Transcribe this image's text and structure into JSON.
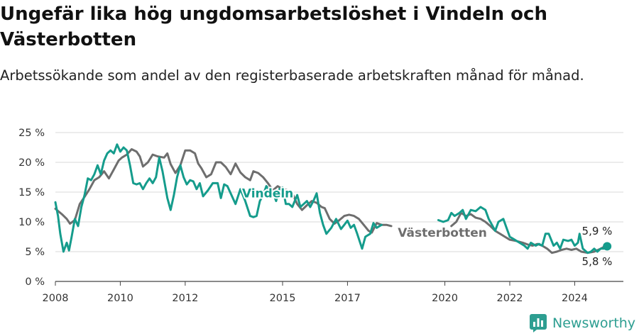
{
  "header": {
    "title": "Ungefär lika hög ungdomsarbetslöshet i Vindeln och Västerbotten",
    "subtitle": "Arbetssökande som andel av den registerbaserade arbetskraften månad för månad."
  },
  "brand": {
    "name": "Newsworthy",
    "icon": "newsworthy-logo-icon",
    "color": "#2d9e91"
  },
  "chart_data": {
    "type": "line",
    "ylim": [
      0,
      25
    ],
    "y_ticks": [
      0,
      5,
      10,
      15,
      20,
      25
    ],
    "y_tick_labels": [
      "0 %",
      "5 %",
      "10 %",
      "15 %",
      "20 %",
      "25 %"
    ],
    "x_range": [
      2008,
      2025.5
    ],
    "x_ticks": [
      2008,
      2010,
      2012,
      2015,
      2017,
      2020,
      2022,
      2024
    ],
    "x_tick_labels": [
      "2008",
      "2010",
      "2012",
      "2015",
      "2017",
      "2020",
      "2022",
      "2024"
    ],
    "grid": true,
    "series": [
      {
        "name": "Västerbotten",
        "color": "#6e6e6e",
        "end_label": "5,8 %",
        "points": [
          [
            2008.0,
            12.2
          ],
          [
            2008.2,
            11.3
          ],
          [
            2008.35,
            10.5
          ],
          [
            2008.45,
            9.7
          ],
          [
            2008.6,
            10.3
          ],
          [
            2008.75,
            13.0
          ],
          [
            2008.9,
            14.2
          ],
          [
            2009.05,
            15.5
          ],
          [
            2009.2,
            17.0
          ],
          [
            2009.35,
            17.5
          ],
          [
            2009.5,
            18.5
          ],
          [
            2009.65,
            17.3
          ],
          [
            2009.8,
            18.8
          ],
          [
            2009.95,
            20.3
          ],
          [
            2010.05,
            20.8
          ],
          [
            2010.2,
            21.3
          ],
          [
            2010.35,
            22.2
          ],
          [
            2010.5,
            21.8
          ],
          [
            2010.6,
            21.0
          ],
          [
            2010.7,
            19.3
          ],
          [
            2010.85,
            20.0
          ],
          [
            2011.0,
            21.3
          ],
          [
            2011.15,
            21.0
          ],
          [
            2011.35,
            20.8
          ],
          [
            2011.45,
            21.5
          ],
          [
            2011.55,
            19.7
          ],
          [
            2011.7,
            18.2
          ],
          [
            2011.85,
            19.5
          ],
          [
            2012.0,
            22.0
          ],
          [
            2012.15,
            22.0
          ],
          [
            2012.3,
            21.5
          ],
          [
            2012.4,
            19.8
          ],
          [
            2012.5,
            19.0
          ],
          [
            2012.65,
            17.5
          ],
          [
            2012.8,
            18.0
          ],
          [
            2012.95,
            20.0
          ],
          [
            2013.1,
            20.0
          ],
          [
            2013.25,
            19.2
          ],
          [
            2013.4,
            18.0
          ],
          [
            2013.55,
            19.8
          ],
          [
            2013.7,
            18.3
          ],
          [
            2013.85,
            17.5
          ],
          [
            2014.0,
            17.0
          ],
          [
            2014.1,
            18.5
          ],
          [
            2014.25,
            18.2
          ],
          [
            2014.4,
            17.5
          ],
          [
            2014.55,
            16.5
          ],
          [
            2014.7,
            15.3
          ],
          [
            2014.85,
            16.0
          ],
          [
            2015.0,
            15.5
          ],
          [
            2015.15,
            15.3
          ],
          [
            2015.3,
            14.8
          ],
          [
            2015.45,
            13.0
          ],
          [
            2015.6,
            12.0
          ],
          [
            2015.75,
            12.8
          ],
          [
            2015.9,
            13.5
          ],
          [
            2016.05,
            13.2
          ],
          [
            2016.2,
            12.5
          ],
          [
            2016.3,
            12.3
          ],
          [
            2016.45,
            10.5
          ],
          [
            2016.6,
            9.7
          ],
          [
            2016.75,
            10.3
          ],
          [
            2016.9,
            11.0
          ],
          [
            2017.05,
            11.2
          ],
          [
            2017.2,
            11.0
          ],
          [
            2017.35,
            10.5
          ],
          [
            2017.5,
            9.5
          ],
          [
            2017.65,
            8.5
          ],
          [
            2017.75,
            8.2
          ],
          [
            2017.9,
            9.8
          ],
          [
            2018.05,
            9.5
          ],
          [
            2018.2,
            9.5
          ],
          [
            2018.35,
            9.3
          ],
          null,
          [
            2020.2,
            9.3
          ],
          [
            2020.35,
            10.0
          ],
          [
            2020.5,
            11.5
          ],
          [
            2020.65,
            11.0
          ],
          [
            2020.8,
            11.3
          ],
          [
            2020.95,
            10.7
          ],
          [
            2021.1,
            10.5
          ],
          [
            2021.25,
            10.0
          ],
          [
            2021.4,
            9.3
          ],
          [
            2021.55,
            8.5
          ],
          [
            2021.7,
            8.0
          ],
          [
            2021.85,
            7.5
          ],
          [
            2022.0,
            7.0
          ],
          [
            2022.2,
            6.8
          ],
          [
            2022.4,
            6.5
          ],
          [
            2022.55,
            6.2
          ],
          [
            2022.7,
            6.0
          ],
          [
            2022.85,
            6.3
          ],
          [
            2023.0,
            6.0
          ],
          [
            2023.15,
            5.5
          ],
          [
            2023.3,
            4.8
          ],
          [
            2023.45,
            5.0
          ],
          [
            2023.6,
            5.3
          ],
          [
            2023.75,
            5.5
          ],
          [
            2023.9,
            5.3
          ],
          [
            2024.05,
            5.5
          ],
          [
            2024.2,
            5.0
          ],
          [
            2024.4,
            4.8
          ],
          [
            2024.6,
            5.0
          ],
          [
            2024.8,
            5.5
          ],
          [
            2024.9,
            5.8
          ]
        ]
      },
      {
        "name": "Vindeln",
        "color": "#159c8c",
        "end_label": "5,9 %",
        "points": [
          [
            2008.0,
            13.3
          ],
          [
            2008.08,
            11.0
          ],
          [
            2008.15,
            8.0
          ],
          [
            2008.25,
            5.0
          ],
          [
            2008.35,
            6.5
          ],
          [
            2008.42,
            5.2
          ],
          [
            2008.5,
            7.5
          ],
          [
            2008.6,
            10.5
          ],
          [
            2008.7,
            9.3
          ],
          [
            2008.8,
            12.5
          ],
          [
            2008.9,
            14.5
          ],
          [
            2009.0,
            17.3
          ],
          [
            2009.1,
            17.0
          ],
          [
            2009.2,
            18.0
          ],
          [
            2009.3,
            19.5
          ],
          [
            2009.4,
            18.0
          ],
          [
            2009.5,
            20.3
          ],
          [
            2009.6,
            21.5
          ],
          [
            2009.7,
            22.0
          ],
          [
            2009.8,
            21.5
          ],
          [
            2009.9,
            23.0
          ],
          [
            2010.0,
            21.8
          ],
          [
            2010.1,
            22.5
          ],
          [
            2010.2,
            22.0
          ],
          [
            2010.3,
            19.5
          ],
          [
            2010.4,
            16.5
          ],
          [
            2010.5,
            16.3
          ],
          [
            2010.6,
            16.5
          ],
          [
            2010.7,
            15.5
          ],
          [
            2010.8,
            16.5
          ],
          [
            2010.9,
            17.3
          ],
          [
            2011.0,
            16.5
          ],
          [
            2011.1,
            17.5
          ],
          [
            2011.2,
            20.8
          ],
          [
            2011.3,
            18.5
          ],
          [
            2011.45,
            14.0
          ],
          [
            2011.55,
            12.0
          ],
          [
            2011.65,
            14.5
          ],
          [
            2011.75,
            17.5
          ],
          [
            2011.85,
            19.5
          ],
          [
            2011.95,
            17.5
          ],
          [
            2012.05,
            16.3
          ],
          [
            2012.15,
            17.0
          ],
          [
            2012.25,
            16.8
          ],
          [
            2012.35,
            15.5
          ],
          [
            2012.45,
            16.5
          ],
          [
            2012.55,
            14.3
          ],
          [
            2012.7,
            15.3
          ],
          [
            2012.85,
            16.5
          ],
          [
            2013.0,
            16.5
          ],
          [
            2013.1,
            14.0
          ],
          [
            2013.2,
            16.3
          ],
          [
            2013.3,
            16.0
          ],
          [
            2013.4,
            14.8
          ],
          [
            2013.55,
            13.0
          ],
          [
            2013.7,
            15.5
          ],
          [
            2013.85,
            13.5
          ],
          [
            2014.0,
            11.0
          ],
          [
            2014.1,
            10.8
          ],
          [
            2014.2,
            11.0
          ],
          [
            2014.3,
            13.5
          ],
          [
            2014.4,
            14.5
          ],
          [
            2014.5,
            16.0
          ],
          [
            2014.6,
            15.3
          ],
          [
            2014.7,
            15.0
          ],
          [
            2014.8,
            13.5
          ],
          [
            2014.9,
            15.5
          ],
          [
            2015.0,
            15.8
          ],
          [
            2015.1,
            13.0
          ],
          [
            2015.2,
            13.0
          ],
          [
            2015.3,
            12.5
          ],
          [
            2015.45,
            14.5
          ],
          [
            2015.55,
            12.5
          ],
          [
            2015.65,
            13.0
          ],
          [
            2015.75,
            13.5
          ],
          [
            2015.85,
            12.5
          ],
          [
            2015.95,
            13.5
          ],
          [
            2016.05,
            14.8
          ],
          [
            2016.15,
            11.5
          ],
          [
            2016.25,
            9.5
          ],
          [
            2016.35,
            8.0
          ],
          [
            2016.5,
            9.0
          ],
          [
            2016.65,
            10.5
          ],
          [
            2016.8,
            8.8
          ],
          [
            2016.9,
            9.5
          ],
          [
            2017.0,
            10.2
          ],
          [
            2017.1,
            9.0
          ],
          [
            2017.2,
            9.5
          ],
          [
            2017.3,
            8.0
          ],
          [
            2017.45,
            5.5
          ],
          [
            2017.55,
            7.5
          ],
          [
            2017.7,
            8.0
          ],
          [
            2017.8,
            9.8
          ],
          [
            2017.9,
            9.0
          ],
          [
            2018.05,
            9.5
          ],
          null,
          [
            2019.8,
            10.3
          ],
          [
            2019.95,
            10.0
          ],
          [
            2020.1,
            10.3
          ],
          [
            2020.2,
            11.5
          ],
          [
            2020.3,
            11.0
          ],
          [
            2020.45,
            11.5
          ],
          [
            2020.55,
            12.0
          ],
          [
            2020.65,
            10.5
          ],
          [
            2020.8,
            12.0
          ],
          [
            2020.95,
            11.8
          ],
          [
            2021.1,
            12.5
          ],
          [
            2021.25,
            12.0
          ],
          [
            2021.35,
            10.5
          ],
          [
            2021.45,
            9.5
          ],
          [
            2021.55,
            8.5
          ],
          [
            2021.65,
            10.0
          ],
          [
            2021.8,
            10.5
          ],
          [
            2021.9,
            9.0
          ],
          [
            2022.0,
            7.5
          ],
          [
            2022.15,
            7.0
          ],
          [
            2022.3,
            6.5
          ],
          [
            2022.45,
            6.0
          ],
          [
            2022.55,
            5.5
          ],
          [
            2022.65,
            6.5
          ],
          [
            2022.8,
            6.0
          ],
          [
            2022.9,
            6.3
          ],
          [
            2023.0,
            6.0
          ],
          [
            2023.1,
            8.0
          ],
          [
            2023.2,
            8.0
          ],
          [
            2023.35,
            6.0
          ],
          [
            2023.45,
            6.5
          ],
          [
            2023.55,
            5.5
          ],
          [
            2023.65,
            7.0
          ],
          [
            2023.8,
            6.8
          ],
          [
            2023.9,
            7.0
          ],
          [
            2024.0,
            6.0
          ],
          [
            2024.1,
            6.5
          ],
          [
            2024.15,
            8.0
          ],
          [
            2024.25,
            5.5
          ],
          [
            2024.4,
            4.8
          ],
          [
            2024.5,
            5.0
          ],
          [
            2024.6,
            5.5
          ],
          [
            2024.7,
            5.0
          ],
          [
            2024.8,
            5.5
          ],
          [
            2024.9,
            5.5
          ],
          [
            2025.0,
            5.9
          ]
        ]
      }
    ]
  }
}
